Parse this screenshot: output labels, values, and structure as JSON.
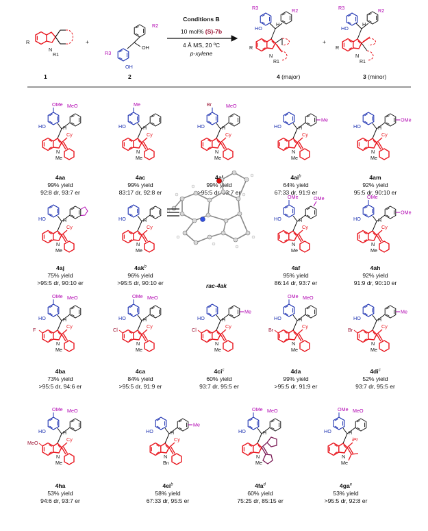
{
  "header": {
    "reactant1_number": "1",
    "reactant2_number": "2",
    "plus1": "+",
    "plus2": "+",
    "conditions": {
      "title": "Conditions B",
      "line1_prefix": "10 mol% ",
      "line1_catalyst": "(S)-7b",
      "line2": "4 Å MS, 20 ºC",
      "line3": "p-xylene"
    },
    "product_major_number": "4",
    "product_major_note": " (major)",
    "product_minor_number": "3",
    "product_minor_note": " (minor)",
    "atoms": {
      "R": "R",
      "R1": "R1",
      "R2": "R2",
      "R3": "R3",
      "N": "N",
      "OH": "OH",
      "HO": "HO",
      "H": "H"
    }
  },
  "atom_labels": {
    "OMe": "OMe",
    "MeO": "MeO",
    "Me": "Me",
    "Br": "Br",
    "F": "F",
    "Cl": "Cl",
    "HO": "HO",
    "H": "H",
    "N": "N",
    "Cy": "Cy",
    "Bn": "Bn",
    "iPr": "iPr"
  },
  "crystal_label": "rac-4ak",
  "compounds": [
    {
      "id": "4aa",
      "sup": "",
      "yield": "99% yield",
      "stereo": "92:8 dr, 93:7 er"
    },
    {
      "id": "4ac",
      "sup": "",
      "yield": "99% yield",
      "stereo": "83:17 dr, 92:8 er"
    },
    {
      "id": "4al",
      "sup": "",
      "yield": "99% yield",
      "stereo": ">95:5 dr, 93:7 er"
    },
    {
      "id": "4ai",
      "sup": "b",
      "yield": "64% yield",
      "stereo": "67:33 dr, 91:9 er"
    },
    {
      "id": "4am",
      "sup": "",
      "yield": "92% yield",
      "stereo": "95:5 dr, 90:10 er"
    },
    {
      "id": "4aj",
      "sup": "",
      "yield": "75% yield",
      "stereo": ">95:5 dr, 90:10 er"
    },
    {
      "id": "4ak",
      "sup": "b",
      "yield": "96% yield",
      "stereo": ">95:5 dr, 90:10 er"
    },
    {
      "id": "4af",
      "sup": "",
      "yield": "95% yield",
      "stereo": "86:14 dr, 93:7 er"
    },
    {
      "id": "4ah",
      "sup": "",
      "yield": "92% yield",
      "stereo": "91:9 dr, 90:10 er"
    },
    {
      "id": "4ba",
      "sup": "",
      "yield": "73% yield",
      "stereo": ">95:5 dr, 94:6 er"
    },
    {
      "id": "4ca",
      "sup": "",
      "yield": "84% yield",
      "stereo": ">95:5 dr, 91:9 er"
    },
    {
      "id": "4ci",
      "sup": "c",
      "yield": "60% yield",
      "stereo": "93:7 dr, 95:5 er"
    },
    {
      "id": "4da",
      "sup": "",
      "yield": "99% yield",
      "stereo": ">95:5 dr, 91:9 er"
    },
    {
      "id": "4di",
      "sup": "c",
      "yield": "52% yield",
      "stereo": "93:7 dr, 95:5 er"
    },
    {
      "id": "4ha",
      "sup": "",
      "yield": "53% yield",
      "stereo": "94:6 dr, 93:7 er"
    },
    {
      "id": "4ei",
      "sup": "b",
      "yield": "58% yield",
      "stereo": "67:33 dr, 95:5 er"
    },
    {
      "id": "4fa",
      "sup": "d",
      "yield": "60% yield",
      "stereo": "75:25 dr, 85:15 er"
    },
    {
      "id": "4ga",
      "sup": "e",
      "yield": "53% yield",
      "stereo": ">95:5 dr, 92:8 er"
    }
  ],
  "colors": {
    "indole": "#e8141c",
    "phenol": "#1a2fb0",
    "aryl": "#111111",
    "substituent": "#b000b0",
    "conditions_title": "#1432c8",
    "catalyst": "#9a1030",
    "separator": "#9a9a9a",
    "cyclopentyl": "#7a1a55"
  }
}
